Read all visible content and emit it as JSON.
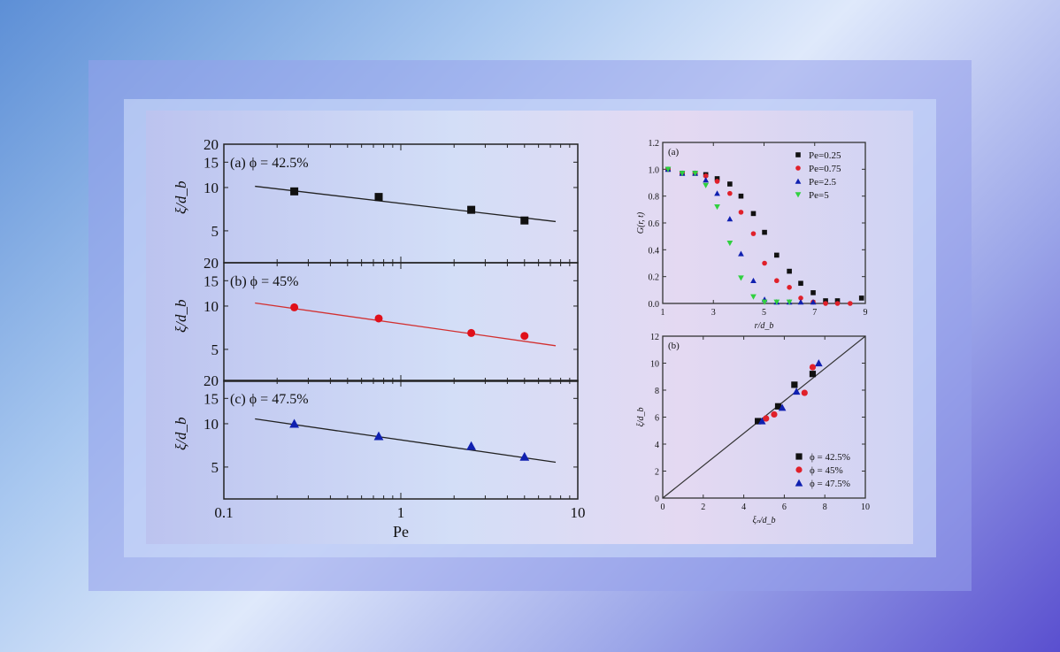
{
  "chart_data": [
    {
      "type": "scatter",
      "x_scale": "log",
      "y_scale": "log",
      "xlim": [
        0.1,
        10
      ],
      "ylim": [
        3,
        20
      ],
      "xlabel": "Pe",
      "ylabel": "ξ/d_b",
      "xticks": [
        "0.1",
        "1",
        "10"
      ],
      "yticks": [
        "5",
        "10",
        "15",
        "20"
      ],
      "panels": [
        {
          "label": "(a) ϕ = 42.5%",
          "color": "#111111",
          "marker": "square",
          "x": [
            0.25,
            0.75,
            2.5,
            5
          ],
          "y": [
            9.4,
            8.6,
            7.0,
            5.9
          ],
          "fit": {
            "x": [
              0.15,
              7.5
            ],
            "y": [
              10.2,
              5.8
            ]
          }
        },
        {
          "label": "(b) ϕ = 45%",
          "color": "#e0101a",
          "marker": "circle",
          "x": [
            0.25,
            0.75,
            2.5,
            5
          ],
          "y": [
            9.8,
            8.2,
            6.5,
            6.2
          ],
          "fit": {
            "x": [
              0.15,
              7.5
            ],
            "y": [
              10.5,
              5.3
            ],
            "line_color": "#d23030"
          }
        },
        {
          "label": "(c) ϕ = 47.5%",
          "color": "#1020b0",
          "marker": "triangle",
          "x": [
            0.25,
            0.75,
            2.5,
            5
          ],
          "y": [
            10.0,
            8.2,
            7.0,
            5.9
          ],
          "fit": {
            "x": [
              0.15,
              7.5
            ],
            "y": [
              10.8,
              5.4
            ]
          }
        }
      ]
    },
    {
      "type": "scatter",
      "panel_label": "(a)",
      "xlim": [
        1,
        9
      ],
      "ylim": [
        0,
        1.2
      ],
      "xlabel": "r/d_b",
      "ylabel": "G(r, t)",
      "xticks": [
        "1",
        "3",
        "5",
        "7",
        "9"
      ],
      "yticks": [
        "0.0",
        "0.2",
        "0.4",
        "0.6",
        "0.8",
        "1.0",
        "1.2"
      ],
      "legend": "top-right",
      "series": [
        {
          "name": "Pe=0.25",
          "color": "#111111",
          "marker": "square",
          "x": [
            1.21,
            1.77,
            2.28,
            2.7,
            3.15,
            3.65,
            4.09,
            4.58,
            5.02,
            5.5,
            6.0,
            6.45,
            6.94,
            7.43,
            7.9,
            8.85
          ],
          "y": [
            1.0,
            0.97,
            0.97,
            0.96,
            0.93,
            0.89,
            0.8,
            0.67,
            0.53,
            0.36,
            0.24,
            0.15,
            0.08,
            0.02,
            0.02,
            0.04
          ]
        },
        {
          "name": "Pe=0.75",
          "color": "#e0202a",
          "marker": "circle",
          "x": [
            1.21,
            1.77,
            2.28,
            2.7,
            3.15,
            3.65,
            4.09,
            4.58,
            5.02,
            5.5,
            6.0,
            6.45,
            6.94,
            7.43,
            7.9,
            8.4
          ],
          "y": [
            1.0,
            0.97,
            0.97,
            0.95,
            0.91,
            0.82,
            0.68,
            0.52,
            0.3,
            0.17,
            0.12,
            0.04,
            0.01,
            0.0,
            0.0,
            0.0
          ]
        },
        {
          "name": "Pe=2.5",
          "color": "#1020b0",
          "marker": "triangle",
          "x": [
            1.21,
            1.77,
            2.28,
            2.7,
            3.15,
            3.65,
            4.09,
            4.58,
            5.02,
            5.5,
            6.0,
            6.45,
            6.94
          ],
          "y": [
            1.0,
            0.97,
            0.97,
            0.92,
            0.82,
            0.63,
            0.37,
            0.17,
            0.03,
            0.01,
            0.01,
            0.01,
            0.01
          ]
        },
        {
          "name": "Pe=5",
          "color": "#30d040",
          "marker": "triangle-down",
          "x": [
            1.21,
            1.77,
            2.28,
            2.7,
            3.15,
            3.65,
            4.09,
            4.58,
            5.02,
            5.5,
            6.0
          ],
          "y": [
            1.0,
            0.97,
            0.97,
            0.88,
            0.72,
            0.45,
            0.19,
            0.05,
            0.01,
            0.01,
            0.01
          ]
        }
      ]
    },
    {
      "type": "scatter",
      "panel_label": "(b)",
      "xlim": [
        0,
        10
      ],
      "ylim": [
        0,
        12
      ],
      "xlabel": "ξₙ/d_b",
      "ylabel": "ξ/d_b",
      "xticks": [
        "0",
        "2",
        "4",
        "6",
        "8",
        "10"
      ],
      "yticks": [
        "0",
        "2",
        "4",
        "6",
        "8",
        "10",
        "12"
      ],
      "legend": "bottom-right",
      "reference_line": "y = 1.2x",
      "series": [
        {
          "name": "ϕ = 42.5%",
          "color": "#111111",
          "marker": "square",
          "x": [
            4.7,
            5.7,
            6.5,
            7.4
          ],
          "y": [
            5.7,
            6.8,
            8.4,
            9.2
          ]
        },
        {
          "name": "ϕ = 45%",
          "color": "#e0202a",
          "marker": "circle",
          "x": [
            5.1,
            5.5,
            7.0,
            7.4
          ],
          "y": [
            5.9,
            6.2,
            7.8,
            9.7
          ]
        },
        {
          "name": "ϕ = 47.5%",
          "color": "#1020b0",
          "marker": "triangle",
          "x": [
            4.9,
            5.9,
            6.6,
            7.7
          ],
          "y": [
            5.7,
            6.7,
            7.9,
            10.0
          ]
        }
      ]
    }
  ]
}
